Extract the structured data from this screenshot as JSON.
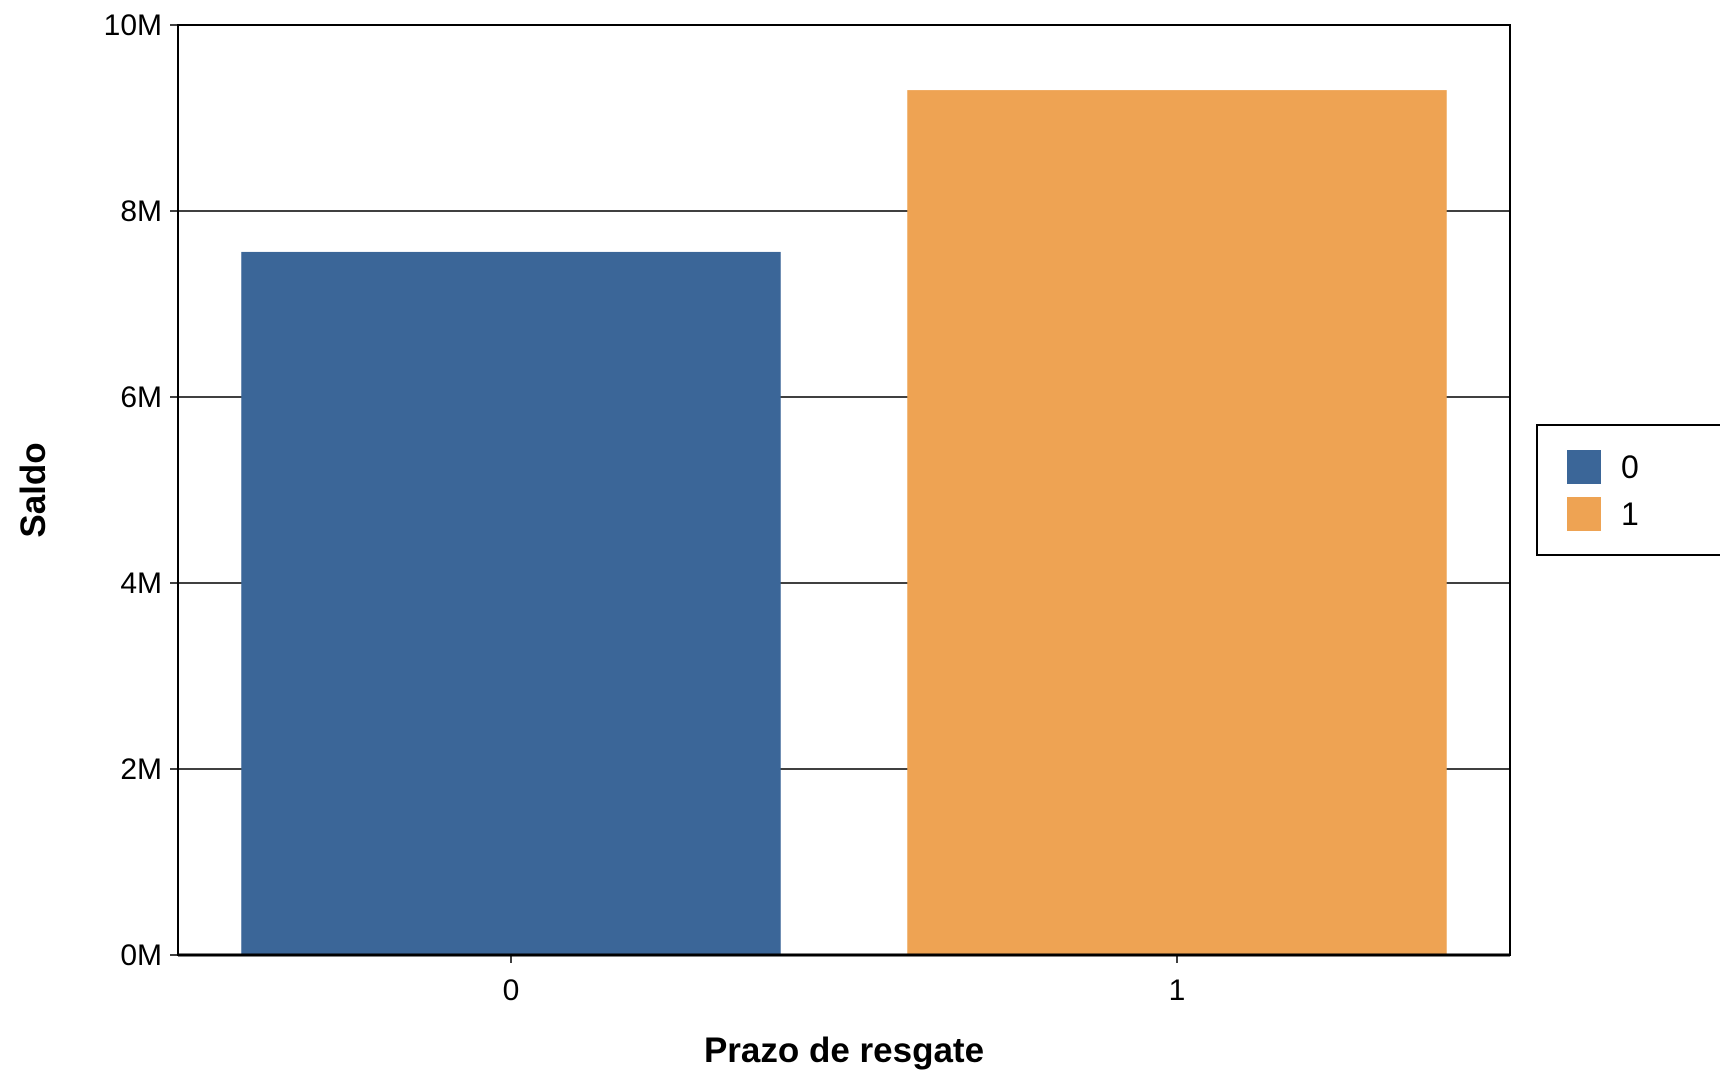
{
  "chart_data": {
    "type": "bar",
    "categories": [
      "0",
      "1"
    ],
    "values": [
      7560000,
      9300000
    ],
    "colors": [
      "#3b6698",
      "#eea353"
    ],
    "xlabel": "Prazo de resgate",
    "ylabel": "Saldo",
    "ylim": [
      0,
      10000000
    ],
    "y_ticks": [
      0,
      2000000,
      4000000,
      6000000,
      8000000,
      10000000
    ],
    "y_tick_labels": [
      "0M",
      "2M",
      "4M",
      "6M",
      "8M",
      "10M"
    ],
    "grid": "horizontal",
    "legend": {
      "placement": "right",
      "items": [
        {
          "label": "0",
          "color": "#3b6698"
        },
        {
          "label": "1",
          "color": "#eea353"
        }
      ]
    }
  }
}
